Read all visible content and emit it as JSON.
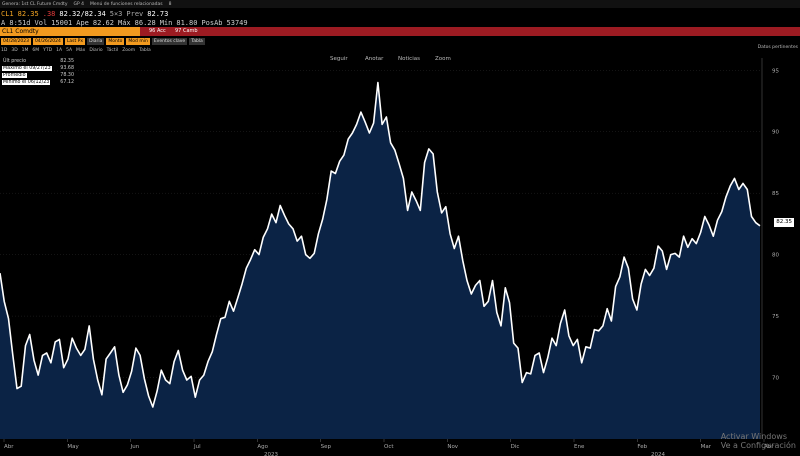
{
  "menubar": {
    "items": [
      "Genera: 1st CL Future Cmdty",
      "GP 4",
      "Menú de funciones relacionadas",
      "8"
    ]
  },
  "quote": {
    "ticker": "CL1",
    "last": "82.35",
    "change": ".38",
    "bid_ask": "82.32/82.34",
    "size": "5×3",
    "prev_label": "Prev",
    "prev": "82.73"
  },
  "quote2": {
    "time": "A 8:51d",
    "vol_label": "Vol",
    "vol": "15001",
    "open_label": "Ape",
    "open": "82.62",
    "high_label": "Máx",
    "high": "86.28",
    "low_label": "Mín",
    "low": "81.80",
    "oi_label": "PosAb",
    "oi": "53749"
  },
  "secbar": {
    "ticker": "CL1 Comdty",
    "chip1": "96 Acc",
    "chip2": "97 Camb"
  },
  "toolbar": {
    "buttons": [
      "04/28/2023",
      "04/26/2024",
      "Last Px",
      "Diaria",
      "Monto",
      "Mod min",
      "Eventos clave",
      "Tabla"
    ]
  },
  "toolbar2": {
    "items": [
      "1D",
      "3D",
      "1M",
      "6M",
      "YTD",
      "1A",
      "5A",
      "Máx",
      "Diario",
      "Táctil",
      "Zoom",
      "Tabla"
    ],
    "datos": "Datos pertinentes"
  },
  "chart_nav": [
    "Seguir",
    "Anotar",
    "Noticias",
    "Zoom"
  ],
  "legend": [
    {
      "label": "Últ precio",
      "value": "82.35"
    },
    {
      "label": "Máximo el 09/27/23",
      "value": "93.68"
    },
    {
      "label": "Promedio",
      "value": "78.30"
    },
    {
      "label": "Mínimo el 06/12/23",
      "value": "67.12"
    }
  ],
  "last_price_tag": "82.35",
  "watermark": [
    "Activar Windows",
    "Ve a Configuración"
  ],
  "colors": {
    "background": "#000000",
    "area": "#0b2345",
    "line": "#ffffff",
    "accent": "#f29a1f",
    "security_bar": "#9c1b22"
  },
  "chart_data": {
    "type": "area",
    "title": "",
    "xlabel": "",
    "ylabel": "",
    "ylim": [
      65,
      96
    ],
    "yticks": [
      70,
      75,
      80,
      85,
      90,
      95
    ],
    "xtick_labels": [
      "Abr",
      "May",
      "Jun",
      "Jul",
      "Ago",
      "Sep",
      "Oct",
      "Nov",
      "Dic",
      "Ene",
      "Feb",
      "Mar",
      "Abr"
    ],
    "year_labels": [
      "2023",
      "2024"
    ],
    "grid": true,
    "series": [
      {
        "values": [
          78.5,
          76.2,
          74.8,
          71.9,
          69.1,
          69.3,
          72.6,
          73.5,
          71.4,
          70.2,
          71.8,
          72.0,
          71.2,
          72.9,
          73.1,
          70.8,
          71.5,
          73.2,
          72.4,
          71.8,
          72.3,
          74.2,
          71.5,
          69.8,
          68.6,
          71.5,
          72.0,
          72.5,
          70.2,
          68.8,
          69.4,
          70.5,
          72.4,
          71.8,
          69.9,
          68.5,
          67.6,
          68.9,
          70.6,
          69.8,
          69.5,
          71.3,
          72.2,
          70.6,
          69.8,
          70.1,
          68.4,
          69.8,
          70.2,
          71.3,
          72.1,
          73.5,
          74.8,
          74.9,
          76.2,
          75.4,
          76.5,
          77.6,
          78.9,
          79.6,
          80.4,
          80.0,
          81.4,
          82.1,
          83.3,
          82.6,
          84.0,
          83.2,
          82.5,
          82.1,
          81.1,
          81.5,
          80.0,
          79.7,
          80.1,
          81.7,
          82.9,
          84.5,
          86.8,
          86.6,
          87.6,
          88.1,
          89.4,
          89.9,
          90.6,
          91.6,
          90.8,
          89.9,
          90.7,
          94.0,
          90.6,
          91.2,
          89.1,
          88.5,
          87.4,
          86.2,
          83.6,
          85.1,
          84.4,
          83.6,
          87.5,
          88.6,
          88.2,
          85.1,
          83.4,
          83.9,
          81.7,
          80.5,
          81.5,
          79.5,
          77.9,
          76.8,
          77.5,
          77.9,
          75.8,
          76.2,
          77.9,
          75.3,
          74.2,
          77.3,
          76.1,
          72.8,
          72.4,
          69.6,
          70.4,
          70.3,
          71.8,
          72.0,
          70.4,
          71.6,
          73.2,
          72.6,
          74.4,
          75.5,
          73.4,
          72.6,
          73.1,
          71.2,
          72.5,
          72.4,
          73.9,
          73.8,
          74.2,
          75.6,
          74.6,
          77.4,
          78.2,
          79.8,
          78.9,
          76.4,
          75.5,
          77.6,
          78.8,
          78.3,
          78.9,
          80.7,
          80.3,
          78.8,
          80.0,
          80.1,
          79.8,
          81.5,
          80.6,
          81.3,
          80.9,
          81.8,
          83.1,
          82.4,
          81.5,
          82.8,
          83.5,
          84.7,
          85.6,
          86.2,
          85.3,
          85.8,
          85.3,
          83.1,
          82.6,
          82.35
        ]
      }
    ]
  }
}
